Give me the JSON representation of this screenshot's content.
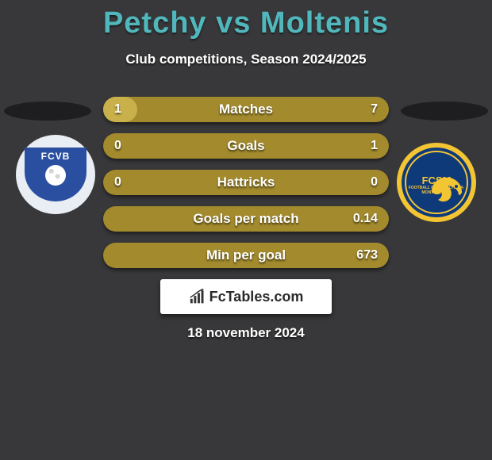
{
  "title": "Petchy vs Moltenis",
  "subtitle": "Club competitions, Season 2024/2025",
  "date": "18 november 2024",
  "branding_text": "FcTables.com",
  "colors": {
    "background": "#38383a",
    "title": "#50b8bc",
    "text": "#ffffff",
    "bar_bg": "#a28a2d",
    "bar_fill": "#c9b04a",
    "shadow_ellipse": "#1e1e20",
    "brand_box": "#ffffff",
    "brand_text": "#2a2a2a"
  },
  "team_left": {
    "name": "Petchy",
    "badge_text": "FCVB",
    "badge_bg": "#2a4fa0",
    "badge_outer": "#e9eef4"
  },
  "team_right": {
    "name": "Moltenis",
    "badge_text": "FCSM",
    "badge_subtext": "FOOTBALL CLUB SOCHAUX-MONTBÉLIARD",
    "badge_bg": "#0f3a7a",
    "badge_ring": "#f4c533"
  },
  "bars": {
    "height": 32,
    "radius": 16,
    "gap": 14,
    "font_size": 17,
    "rows": [
      {
        "label": "Matches",
        "left": "1",
        "right": "7",
        "fill_pct": 12
      },
      {
        "label": "Goals",
        "left": "0",
        "right": "1",
        "fill_pct": 0
      },
      {
        "label": "Hattricks",
        "left": "0",
        "right": "0",
        "fill_pct": 0
      },
      {
        "label": "Goals per match",
        "left": "",
        "right": "0.14",
        "fill_pct": 0
      },
      {
        "label": "Min per goal",
        "left": "",
        "right": "673",
        "fill_pct": 0
      }
    ]
  }
}
